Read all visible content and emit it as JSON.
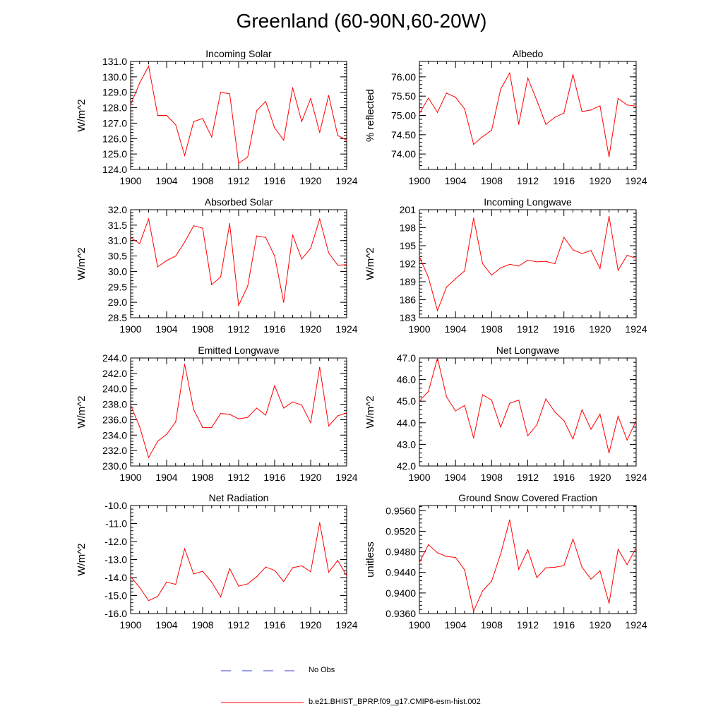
{
  "title": "Greenland (60-90N,60-20W)",
  "legend": [
    {
      "label": "No Obs",
      "color": "#3b3bd8",
      "style": "dashed"
    },
    {
      "label": "b.e21.BHIST_BPRP.f09_g17.CMIP6-esm-hist.002",
      "color": "#ff0000",
      "style": "solid"
    }
  ],
  "chart_data": [
    {
      "type": "line",
      "title": "Incoming Solar",
      "ylabel": "W/m^2",
      "xlim": [
        1900,
        1924
      ],
      "xticks": [
        1900,
        1904,
        1908,
        1912,
        1916,
        1920,
        1924
      ],
      "ylim": [
        124.0,
        131.0
      ],
      "yticks": [
        124.0,
        125.0,
        126.0,
        127.0,
        128.0,
        129.0,
        130.0,
        131.0
      ],
      "ydecimals": 1,
      "yminor": 0.2,
      "x": [
        1900,
        1901,
        1902,
        1903,
        1904,
        1905,
        1906,
        1907,
        1908,
        1909,
        1910,
        1911,
        1912,
        1913,
        1914,
        1915,
        1916,
        1917,
        1918,
        1919,
        1920,
        1921,
        1922,
        1923,
        1924
      ],
      "series": [
        {
          "name": "b.e21.BHIST_BPRP.f09_g17.CMIP6-esm-hist.002",
          "color": "#ff0000",
          "values": [
            128.2,
            129.6,
            130.7,
            127.5,
            127.5,
            126.9,
            124.9,
            127.1,
            127.3,
            126.1,
            129.0,
            128.9,
            124.4,
            124.8,
            127.8,
            128.4,
            126.7,
            125.9,
            129.3,
            127.1,
            128.6,
            126.4,
            128.8,
            126.2,
            125.9
          ]
        }
      ]
    },
    {
      "type": "line",
      "title": "Albedo",
      "ylabel": "% reflected",
      "xlim": [
        1900,
        1924
      ],
      "xticks": [
        1900,
        1904,
        1908,
        1912,
        1916,
        1920,
        1924
      ],
      "ylim": [
        73.6,
        76.4
      ],
      "yticks": [
        74.0,
        74.5,
        75.0,
        75.5,
        76.0
      ],
      "ydecimals": 2,
      "yminor": 0.1,
      "x": [
        1900,
        1901,
        1902,
        1903,
        1904,
        1905,
        1906,
        1907,
        1908,
        1909,
        1910,
        1911,
        1912,
        1913,
        1914,
        1915,
        1916,
        1917,
        1918,
        1919,
        1920,
        1921,
        1922,
        1923,
        1924
      ],
      "series": [
        {
          "name": "b.e21.BHIST_BPRP.f09_g17.CMIP6-esm-hist.002",
          "color": "#ff0000",
          "values": [
            75.05,
            75.45,
            75.08,
            75.58,
            75.47,
            75.17,
            74.25,
            74.45,
            74.62,
            75.68,
            76.1,
            74.77,
            75.97,
            75.39,
            74.77,
            74.95,
            75.06,
            76.06,
            75.1,
            75.14,
            75.25,
            73.93,
            75.44,
            75.27,
            75.24
          ]
        }
      ]
    },
    {
      "type": "line",
      "title": "Absorbed Solar",
      "ylabel": "W/m^2",
      "xlim": [
        1900,
        1924
      ],
      "xticks": [
        1900,
        1904,
        1908,
        1912,
        1916,
        1920,
        1924
      ],
      "ylim": [
        28.5,
        32.0
      ],
      "yticks": [
        28.5,
        29.0,
        29.5,
        30.0,
        30.5,
        31.0,
        31.5,
        32.0
      ],
      "ydecimals": 1,
      "yminor": 0.1,
      "x": [
        1900,
        1901,
        1902,
        1903,
        1904,
        1905,
        1906,
        1907,
        1908,
        1909,
        1910,
        1911,
        1912,
        1913,
        1914,
        1915,
        1916,
        1917,
        1918,
        1919,
        1920,
        1921,
        1922,
        1923,
        1924
      ],
      "series": [
        {
          "name": "b.e21.BHIST_BPRP.f09_g17.CMIP6-esm-hist.002",
          "color": "#ff0000",
          "values": [
            31.1,
            30.9,
            31.7,
            30.15,
            30.35,
            30.5,
            30.95,
            31.48,
            31.4,
            29.57,
            29.82,
            31.55,
            28.9,
            29.52,
            31.15,
            31.1,
            30.5,
            29.0,
            31.18,
            30.4,
            30.75,
            31.7,
            30.6,
            30.2,
            30.22
          ]
        }
      ]
    },
    {
      "type": "line",
      "title": "Incoming Longwave",
      "ylabel": "W/m^2",
      "xlim": [
        1900,
        1924
      ],
      "xticks": [
        1900,
        1904,
        1908,
        1912,
        1916,
        1920,
        1924
      ],
      "ylim": [
        183,
        201
      ],
      "yticks": [
        183,
        186,
        189,
        192,
        195,
        198,
        201
      ],
      "ydecimals": 0,
      "yminor": 0.6,
      "x": [
        1900,
        1901,
        1902,
        1903,
        1904,
        1905,
        1906,
        1907,
        1908,
        1909,
        1910,
        1911,
        1912,
        1913,
        1914,
        1915,
        1916,
        1917,
        1918,
        1919,
        1920,
        1921,
        1922,
        1923,
        1924
      ],
      "series": [
        {
          "name": "b.e21.BHIST_BPRP.f09_g17.CMIP6-esm-hist.002",
          "color": "#ff0000",
          "values": [
            193.2,
            189.7,
            184.2,
            188.1,
            189.5,
            190.8,
            199.6,
            192.0,
            190.1,
            191.3,
            191.9,
            191.6,
            192.6,
            192.3,
            192.4,
            192.0,
            196.4,
            194.3,
            193.7,
            194.2,
            191.2,
            199.9,
            190.9,
            193.4,
            192.9
          ]
        }
      ]
    },
    {
      "type": "line",
      "title": "Emitted Longwave",
      "ylabel": "W/m^2",
      "xlim": [
        1900,
        1924
      ],
      "xticks": [
        1900,
        1904,
        1908,
        1912,
        1916,
        1920,
        1924
      ],
      "ylim": [
        230.0,
        244.0
      ],
      "yticks": [
        230.0,
        232.0,
        234.0,
        236.0,
        238.0,
        240.0,
        242.0,
        244.0
      ],
      "ydecimals": 1,
      "yminor": 0.4,
      "x": [
        1900,
        1901,
        1902,
        1903,
        1904,
        1905,
        1906,
        1907,
        1908,
        1909,
        1910,
        1911,
        1912,
        1913,
        1914,
        1915,
        1916,
        1917,
        1918,
        1919,
        1920,
        1921,
        1922,
        1923,
        1924
      ],
      "series": [
        {
          "name": "b.e21.BHIST_BPRP.f09_g17.CMIP6-esm-hist.002",
          "color": "#ff0000",
          "values": [
            237.9,
            235.1,
            231.1,
            233.2,
            234.1,
            235.7,
            243.2,
            237.3,
            235.0,
            235.0,
            236.8,
            236.7,
            236.1,
            236.3,
            237.5,
            236.6,
            240.4,
            237.5,
            238.3,
            237.9,
            235.6,
            242.8,
            235.2,
            236.5,
            236.9
          ]
        }
      ]
    },
    {
      "type": "line",
      "title": "Net Longwave",
      "ylabel": "W/m^2",
      "xlim": [
        1900,
        1924
      ],
      "xticks": [
        1900,
        1904,
        1908,
        1912,
        1916,
        1920,
        1924
      ],
      "ylim": [
        42.0,
        47.0
      ],
      "yticks": [
        42.0,
        43.0,
        44.0,
        45.0,
        46.0,
        47.0
      ],
      "ydecimals": 1,
      "yminor": 0.2,
      "x": [
        1900,
        1901,
        1902,
        1903,
        1904,
        1905,
        1906,
        1907,
        1908,
        1909,
        1910,
        1911,
        1912,
        1913,
        1914,
        1915,
        1916,
        1917,
        1918,
        1919,
        1920,
        1921,
        1922,
        1923,
        1924
      ],
      "series": [
        {
          "name": "b.e21.BHIST_BPRP.f09_g17.CMIP6-esm-hist.002",
          "color": "#ff0000",
          "values": [
            45.0,
            45.45,
            47.0,
            45.2,
            44.55,
            44.8,
            43.3,
            45.3,
            45.05,
            43.8,
            44.9,
            45.05,
            43.4,
            43.9,
            45.1,
            44.5,
            44.1,
            43.25,
            44.6,
            43.7,
            44.4,
            42.6,
            44.3,
            43.2,
            44.1
          ]
        }
      ]
    },
    {
      "type": "line",
      "title": "Net Radiation",
      "ylabel": "W/m^2",
      "xlim": [
        1900,
        1924
      ],
      "xticks": [
        1900,
        1904,
        1908,
        1912,
        1916,
        1920,
        1924
      ],
      "ylim": [
        -16.0,
        -10.0
      ],
      "yticks": [
        -16.0,
        -15.0,
        -14.0,
        -13.0,
        -12.0,
        -11.0,
        -10.0
      ],
      "ydecimals": 1,
      "yminor": 0.2,
      "x": [
        1900,
        1901,
        1902,
        1903,
        1904,
        1905,
        1906,
        1907,
        1908,
        1909,
        1910,
        1911,
        1912,
        1913,
        1914,
        1915,
        1916,
        1917,
        1918,
        1919,
        1920,
        1921,
        1922,
        1923,
        1924
      ],
      "series": [
        {
          "name": "b.e21.BHIST_BPRP.f09_g17.CMIP6-esm-hist.002",
          "color": "#ff0000",
          "values": [
            -13.95,
            -14.55,
            -15.28,
            -15.05,
            -14.25,
            -14.38,
            -12.4,
            -13.8,
            -13.65,
            -14.25,
            -15.08,
            -13.5,
            -14.48,
            -14.35,
            -13.95,
            -13.42,
            -13.6,
            -14.22,
            -13.45,
            -13.35,
            -13.68,
            -10.95,
            -13.7,
            -13.05,
            -13.9
          ]
        }
      ]
    },
    {
      "type": "line",
      "title": "Ground Snow Covered Fraction",
      "ylabel": "unitless",
      "xlim": [
        1900,
        1924
      ],
      "xticks": [
        1900,
        1904,
        1908,
        1912,
        1916,
        1920,
        1924
      ],
      "ylim": [
        0.936,
        0.957
      ],
      "yticks": [
        0.936,
        0.94,
        0.944,
        0.948,
        0.952,
        0.956
      ],
      "ydecimals": 4,
      "yminor": 0.0008,
      "x": [
        1900,
        1901,
        1902,
        1903,
        1904,
        1905,
        1906,
        1907,
        1908,
        1909,
        1910,
        1911,
        1912,
        1913,
        1914,
        1915,
        1916,
        1917,
        1918,
        1919,
        1920,
        1921,
        1922,
        1923,
        1924
      ],
      "series": [
        {
          "name": "b.e21.BHIST_BPRP.f09_g17.CMIP6-esm-hist.002",
          "color": "#ff0000",
          "values": [
            0.9459,
            0.9494,
            0.9478,
            0.9471,
            0.9469,
            0.9445,
            0.9365,
            0.9404,
            0.9423,
            0.9476,
            0.9542,
            0.9446,
            0.9484,
            0.943,
            0.9449,
            0.945,
            0.9453,
            0.9505,
            0.945,
            0.9427,
            0.9443,
            0.938,
            0.9485,
            0.9455,
            0.9488
          ]
        }
      ]
    }
  ]
}
